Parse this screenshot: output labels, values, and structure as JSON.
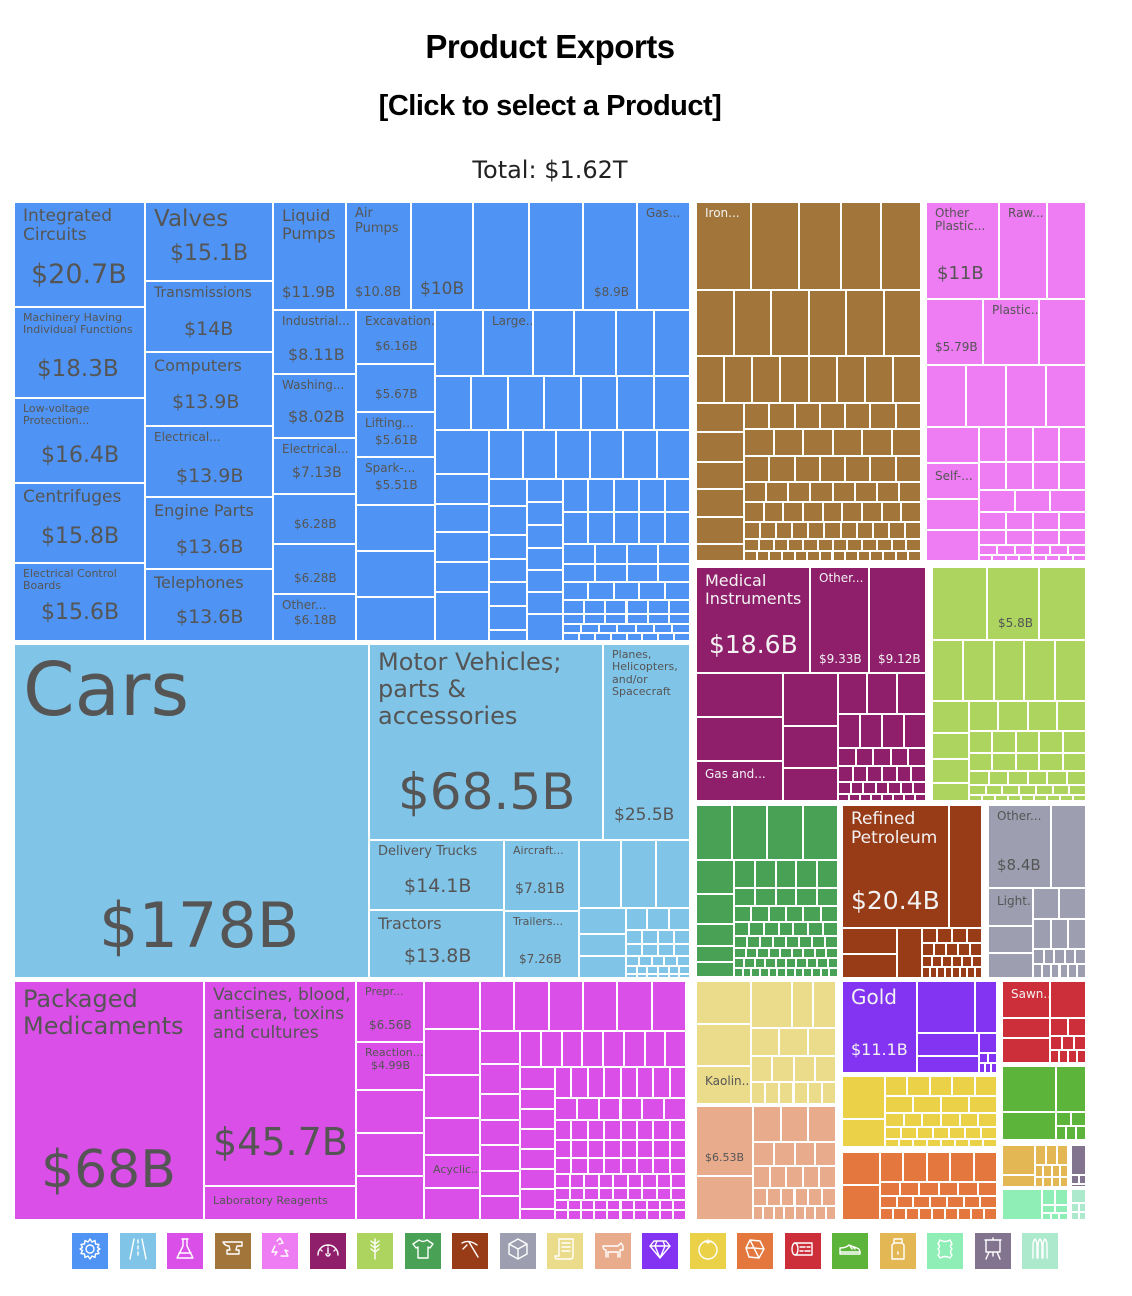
{
  "header": {
    "title": "Product Exports",
    "subtitle": "[Click to select a Product]",
    "total": "Total: $1.62T"
  },
  "chart_data": {
    "type": "treemap",
    "title": "Product Exports",
    "subtitle": "[Click to select a Product]",
    "total_label": "Total: $1.62T",
    "total_value_billions": 1620,
    "sectors": [
      {
        "name": "Machinery",
        "color": "#4f94f5",
        "icon": "gear-icon"
      },
      {
        "name": "Transportation",
        "color": "#80c4e8",
        "icon": "road-icon"
      },
      {
        "name": "Chemical Products",
        "color": "#da4fe8",
        "icon": "flask-icon"
      },
      {
        "name": "Metals",
        "color": "#a2763a",
        "icon": "anvil-icon"
      },
      {
        "name": "Plastics and Rubbers",
        "color": "#ee7cf2",
        "icon": "recycle-icon"
      },
      {
        "name": "Instruments",
        "color": "#8f1f6b",
        "icon": "gauge-icon"
      },
      {
        "name": "Vegetable Products",
        "color": "#acd45f",
        "icon": "wheat-icon"
      },
      {
        "name": "Textiles",
        "color": "#48a155",
        "icon": "shirt-icon"
      },
      {
        "name": "Mineral Products",
        "color": "#983b17",
        "icon": "pickaxe-icon"
      },
      {
        "name": "Miscellaneous",
        "color": "#9d9fb0",
        "icon": "box-icon"
      },
      {
        "name": "Paper Goods",
        "color": "#ebdc8c",
        "icon": "scroll-icon"
      },
      {
        "name": "Animal Products",
        "color": "#e8ac8c",
        "icon": "cow-icon"
      },
      {
        "name": "Precious Metals",
        "color": "#8333f2",
        "icon": "diamond-icon"
      },
      {
        "name": "Foodstuffs",
        "color": "#ead148",
        "icon": "tomato-icon"
      },
      {
        "name": "Stone And Glass",
        "color": "#e4773e",
        "icon": "stone-icon"
      },
      {
        "name": "Wood Products",
        "color": "#cc2e3a",
        "icon": "log-icon"
      },
      {
        "name": "Footwear and Headwear",
        "color": "#5db43a",
        "icon": "shoe-icon"
      },
      {
        "name": "Animal and Vegetable Bi-Products",
        "color": "#e4b755",
        "icon": "bottle-icon"
      },
      {
        "name": "Animal Hides",
        "color": "#8feeb5",
        "icon": "hide-icon"
      },
      {
        "name": "Arts and Antiques",
        "color": "#82738f",
        "icon": "easel-icon"
      },
      {
        "name": "Weapons",
        "color": "#ade9cd",
        "icon": "bullets-icon"
      }
    ],
    "labeled_items": [
      {
        "sector": "Machinery",
        "name": "Integrated Circuits",
        "value": "$20.7B"
      },
      {
        "sector": "Machinery",
        "name": "Machinery Having Individual Functions",
        "value": "$18.3B"
      },
      {
        "sector": "Machinery",
        "name": "Low-voltage Protection...",
        "value": "$16.4B"
      },
      {
        "sector": "Machinery",
        "name": "Centrifuges",
        "value": "$15.8B"
      },
      {
        "sector": "Machinery",
        "name": "Electrical Control Boards",
        "value": "$15.6B"
      },
      {
        "sector": "Machinery",
        "name": "Valves",
        "value": "$15.1B"
      },
      {
        "sector": "Machinery",
        "name": "Transmissions",
        "value": "$14B"
      },
      {
        "sector": "Machinery",
        "name": "Computers",
        "value": "$13.9B"
      },
      {
        "sector": "Machinery",
        "name": "Electrical...",
        "value": "$13.9B"
      },
      {
        "sector": "Machinery",
        "name": "Engine Parts",
        "value": "$13.6B"
      },
      {
        "sector": "Machinery",
        "name": "Telephones",
        "value": "$13.6B"
      },
      {
        "sector": "Machinery",
        "name": "Liquid Pumps",
        "value": "$11.9B"
      },
      {
        "sector": "Machinery",
        "name": "Air Pumps",
        "value": "$10.8B"
      },
      {
        "sector": "Machinery",
        "name": "",
        "value": "$10B"
      },
      {
        "sector": "Machinery",
        "name": "",
        "value": "$8.9B"
      },
      {
        "sector": "Machinery",
        "name": "Gas...",
        "value": ""
      },
      {
        "sector": "Machinery",
        "name": "Industrial...",
        "value": "$8.11B"
      },
      {
        "sector": "Machinery",
        "name": "Washing...",
        "value": "$8.02B"
      },
      {
        "sector": "Machinery",
        "name": "Electrical...",
        "value": "$7.13B"
      },
      {
        "sector": "Machinery",
        "name": "",
        "value": "$6.28B"
      },
      {
        "sector": "Machinery",
        "name": "",
        "value": "$6.28B"
      },
      {
        "sector": "Machinery",
        "name": "Other...",
        "value": "$6.18B"
      },
      {
        "sector": "Machinery",
        "name": "Excavation...",
        "value": "$6.16B"
      },
      {
        "sector": "Machinery",
        "name": "",
        "value": "$5.67B"
      },
      {
        "sector": "Machinery",
        "name": "Lifting...",
        "value": "$5.61B"
      },
      {
        "sector": "Machinery",
        "name": "Spark-...",
        "value": "$5.51B"
      },
      {
        "sector": "Machinery",
        "name": "Large...",
        "value": ""
      },
      {
        "sector": "Transportation",
        "name": "Cars",
        "value": "$178B"
      },
      {
        "sector": "Transportation",
        "name": "Motor Vehicles; parts & accessories",
        "value": "$68.5B"
      },
      {
        "sector": "Transportation",
        "name": "Planes, Helicopters, and/or Spacecraft",
        "value": "$25.5B"
      },
      {
        "sector": "Transportation",
        "name": "Delivery Trucks",
        "value": "$14.1B"
      },
      {
        "sector": "Transportation",
        "name": "Tractors",
        "value": "$13.8B"
      },
      {
        "sector": "Transportation",
        "name": "Aircraft...",
        "value": "$7.81B"
      },
      {
        "sector": "Transportation",
        "name": "Trailers...",
        "value": "$7.26B"
      },
      {
        "sector": "Chemical Products",
        "name": "Packaged Medicaments",
        "value": "$68B"
      },
      {
        "sector": "Chemical Products",
        "name": "Vaccines, blood, antisera, toxins and cultures",
        "value": "$45.7B"
      },
      {
        "sector": "Chemical Products",
        "name": "Laboratory Reagents",
        "value": ""
      },
      {
        "sector": "Chemical Products",
        "name": "Prepr...",
        "value": "$6.56B"
      },
      {
        "sector": "Chemical Products",
        "name": "Reaction...",
        "value": "$4.99B"
      },
      {
        "sector": "Chemical Products",
        "name": "Acyclic...",
        "value": ""
      },
      {
        "sector": "Metals",
        "name": "Iron...",
        "value": ""
      },
      {
        "sector": "Plastics and Rubbers",
        "name": "Other Plastic...",
        "value": "$11B"
      },
      {
        "sector": "Plastics and Rubbers",
        "name": "Raw...",
        "value": ""
      },
      {
        "sector": "Plastics and Rubbers",
        "name": "Plastic...",
        "value": ""
      },
      {
        "sector": "Plastics and Rubbers",
        "name": "",
        "value": "$5.79B"
      },
      {
        "sector": "Plastics and Rubbers",
        "name": "Self-...",
        "value": ""
      },
      {
        "sector": "Instruments",
        "name": "Medical Instruments",
        "value": "$18.6B"
      },
      {
        "sector": "Instruments",
        "name": "Other...",
        "value": "$9.33B"
      },
      {
        "sector": "Instruments",
        "name": "",
        "value": "$9.12B"
      },
      {
        "sector": "Instruments",
        "name": "Gas and...",
        "value": ""
      },
      {
        "sector": "Vegetable Products",
        "name": "",
        "value": "$5.8B"
      },
      {
        "sector": "Mineral Products",
        "name": "Refined Petroleum",
        "value": "$20.4B"
      },
      {
        "sector": "Miscellaneous",
        "name": "Other...",
        "value": "$8.4B"
      },
      {
        "sector": "Miscellaneous",
        "name": "Light...",
        "value": ""
      },
      {
        "sector": "Paper Goods",
        "name": "Kaolin...",
        "value": ""
      },
      {
        "sector": "Animal Products",
        "name": "",
        "value": "$6.53B"
      },
      {
        "sector": "Precious Metals",
        "name": "Gold",
        "value": "$11.1B"
      },
      {
        "sector": "Wood Products",
        "name": "Sawn...",
        "value": ""
      }
    ]
  }
}
